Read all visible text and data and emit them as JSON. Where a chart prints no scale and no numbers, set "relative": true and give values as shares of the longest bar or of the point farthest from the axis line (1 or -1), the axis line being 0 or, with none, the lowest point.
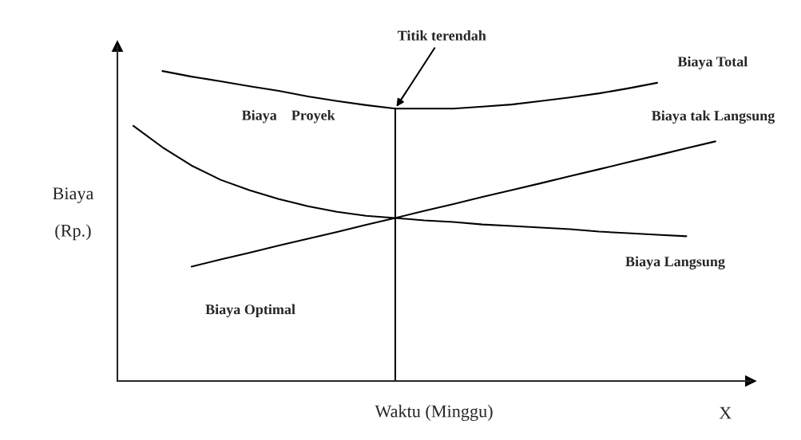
{
  "chart_data": {
    "type": "line",
    "relative": true,
    "xlabel": "Waktu (Minggu)",
    "ylabel": "Biaya\n\n(Rp.)",
    "legend": false,
    "marker": "none",
    "line_style": "solid",
    "categories": [
      null,
      null,
      null,
      null,
      null,
      null,
      null,
      null,
      null,
      null,
      null,
      null,
      null,
      null,
      null,
      null,
      null,
      null,
      null,
      null,
      null,
      null
    ],
    "series": [
      {
        "name": "Biaya Total",
        "color": "#000000",
        "values": [
          null,
          1,
          0.982,
          0.967,
          0.951,
          0.936,
          0.918,
          0.903,
          0.89,
          0.879,
          0.879,
          0.879,
          0.885,
          0.892,
          0.903,
          0.915,
          0.928,
          0.944,
          0.962,
          null,
          null,
          null
        ]
      },
      {
        "name": "Biaya tak Langsung",
        "color": "#000000",
        "values": [
          null,
          null,
          0.369,
          0.392,
          0.414,
          0.437,
          0.459,
          0.481,
          0.504,
          0.526,
          0.549,
          0.571,
          0.594,
          0.616,
          0.638,
          0.661,
          0.683,
          0.706,
          0.728,
          0.751,
          0.773,
          null
        ]
      },
      {
        "name": "Biaya Langsung",
        "color": "#000000",
        "values": [
          0.823,
          0.754,
          0.695,
          0.649,
          0.615,
          0.587,
          0.564,
          0.546,
          0.533,
          0.526,
          0.518,
          0.513,
          0.505,
          0.5,
          0.495,
          0.49,
          0.482,
          0.477,
          0.472,
          0.467,
          null,
          null
        ]
      }
    ],
    "annotations": [
      "Titik terendah",
      "Biaya    Proyek",
      "Biaya Optimal",
      "X"
    ]
  }
}
